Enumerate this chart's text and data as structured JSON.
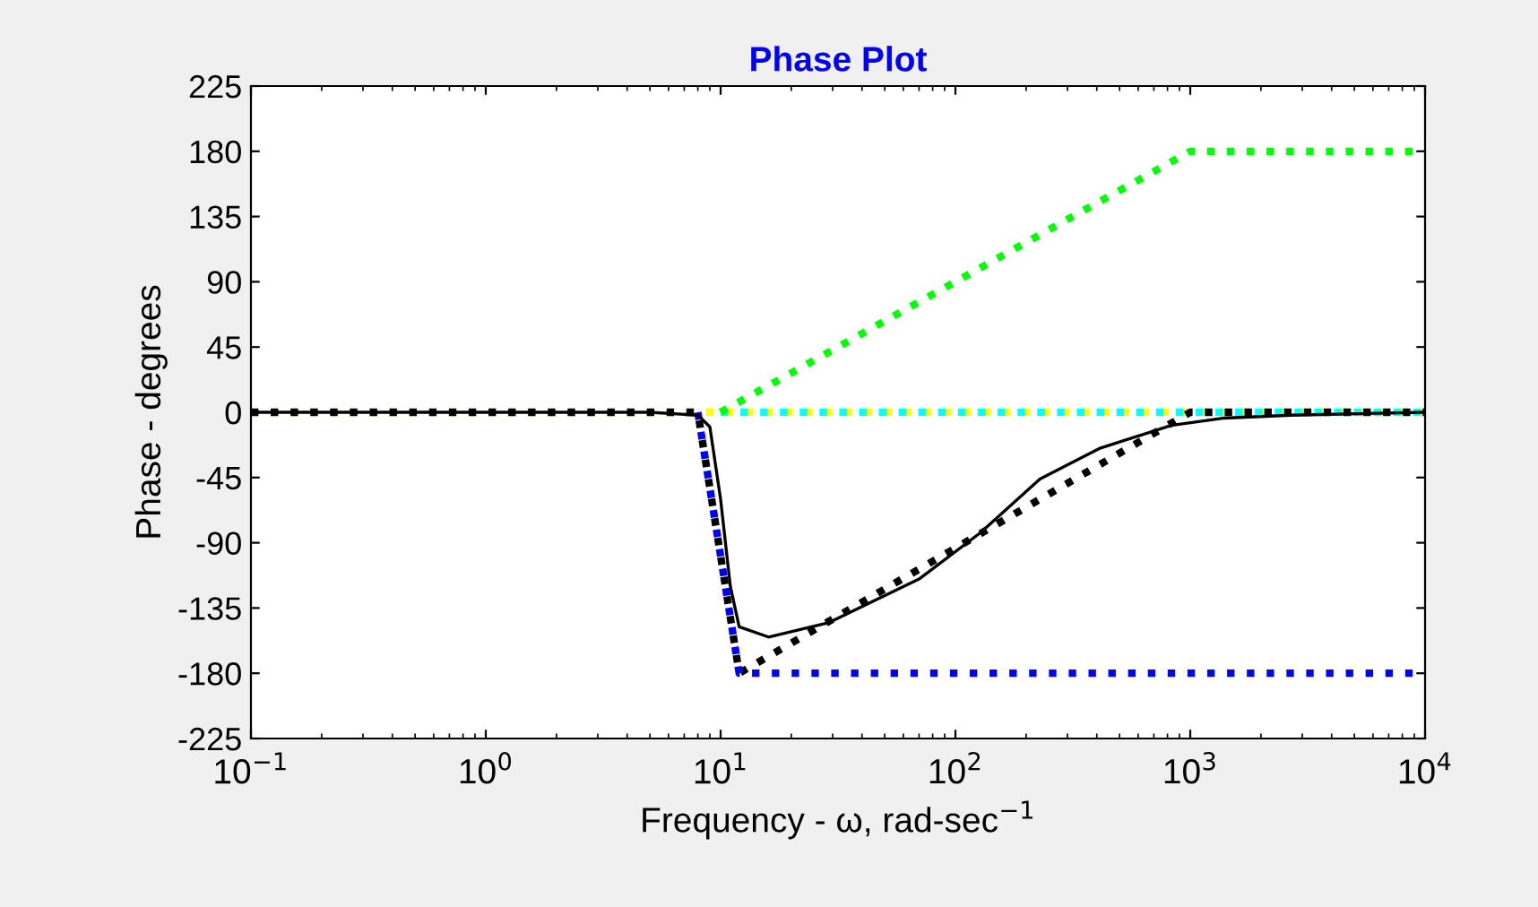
{
  "chart_data": {
    "type": "line",
    "title": "Phase Plot",
    "xlabel": "Frequency - ω, rad-sec$^{−1}$",
    "ylabel": "Phase - degrees",
    "log": "x",
    "grid": false,
    "legend": false,
    "xlim": [
      0.1,
      10000
    ],
    "xticks": [
      {
        "value": 0.1,
        "label": "10$^{−1}$"
      },
      {
        "value": 1,
        "label": "10$^{0}$"
      },
      {
        "value": 10,
        "label": "10$^{1}$"
      },
      {
        "value": 100,
        "label": "10$^{2}$"
      },
      {
        "value": 1000,
        "label": "10$^{3}$"
      },
      {
        "value": 10000,
        "label": "10$^{4}$"
      }
    ],
    "ylim": [
      -225,
      225
    ],
    "yticks": [
      -225,
      -180,
      -135,
      -90,
      -45,
      0,
      45,
      90,
      135,
      180,
      225
    ],
    "series": [
      {
        "color": "#ffff00",
        "line_style": "dotted",
        "x": [
          0.1,
          10000
        ],
        "values": [
          0,
          0
        ]
      },
      {
        "color": "#00ffff",
        "line_style": "dotted",
        "x": [
          10,
          10000
        ],
        "values": [
          0,
          0
        ]
      },
      {
        "color": "#00ff00",
        "line_style": "dotted",
        "x": [
          10,
          1000,
          10000
        ],
        "values": [
          0,
          180,
          180
        ]
      },
      {
        "color": "#000000",
        "line_style": "dotted",
        "x": [
          0.1,
          8,
          12,
          1000,
          10000
        ],
        "values": [
          0,
          0,
          -180,
          0,
          0
        ]
      },
      {
        "color": "#0000ff",
        "line_style": "dotted",
        "x": [
          8,
          12,
          10000
        ],
        "values": [
          0,
          -180,
          -180
        ]
      },
      {
        "color": "#000000",
        "line_style": "solid",
        "x": [
          0.1,
          5,
          8,
          9,
          10,
          11,
          12,
          16,
          29,
          70,
          128,
          229,
          410,
          830,
          1400,
          2700,
          10000
        ],
        "values": [
          0,
          0,
          -2,
          -10,
          -60,
          -120,
          -148,
          -155,
          -145,
          -115,
          -83,
          -46,
          -25,
          -9,
          -4,
          -2,
          0
        ]
      }
    ]
  }
}
